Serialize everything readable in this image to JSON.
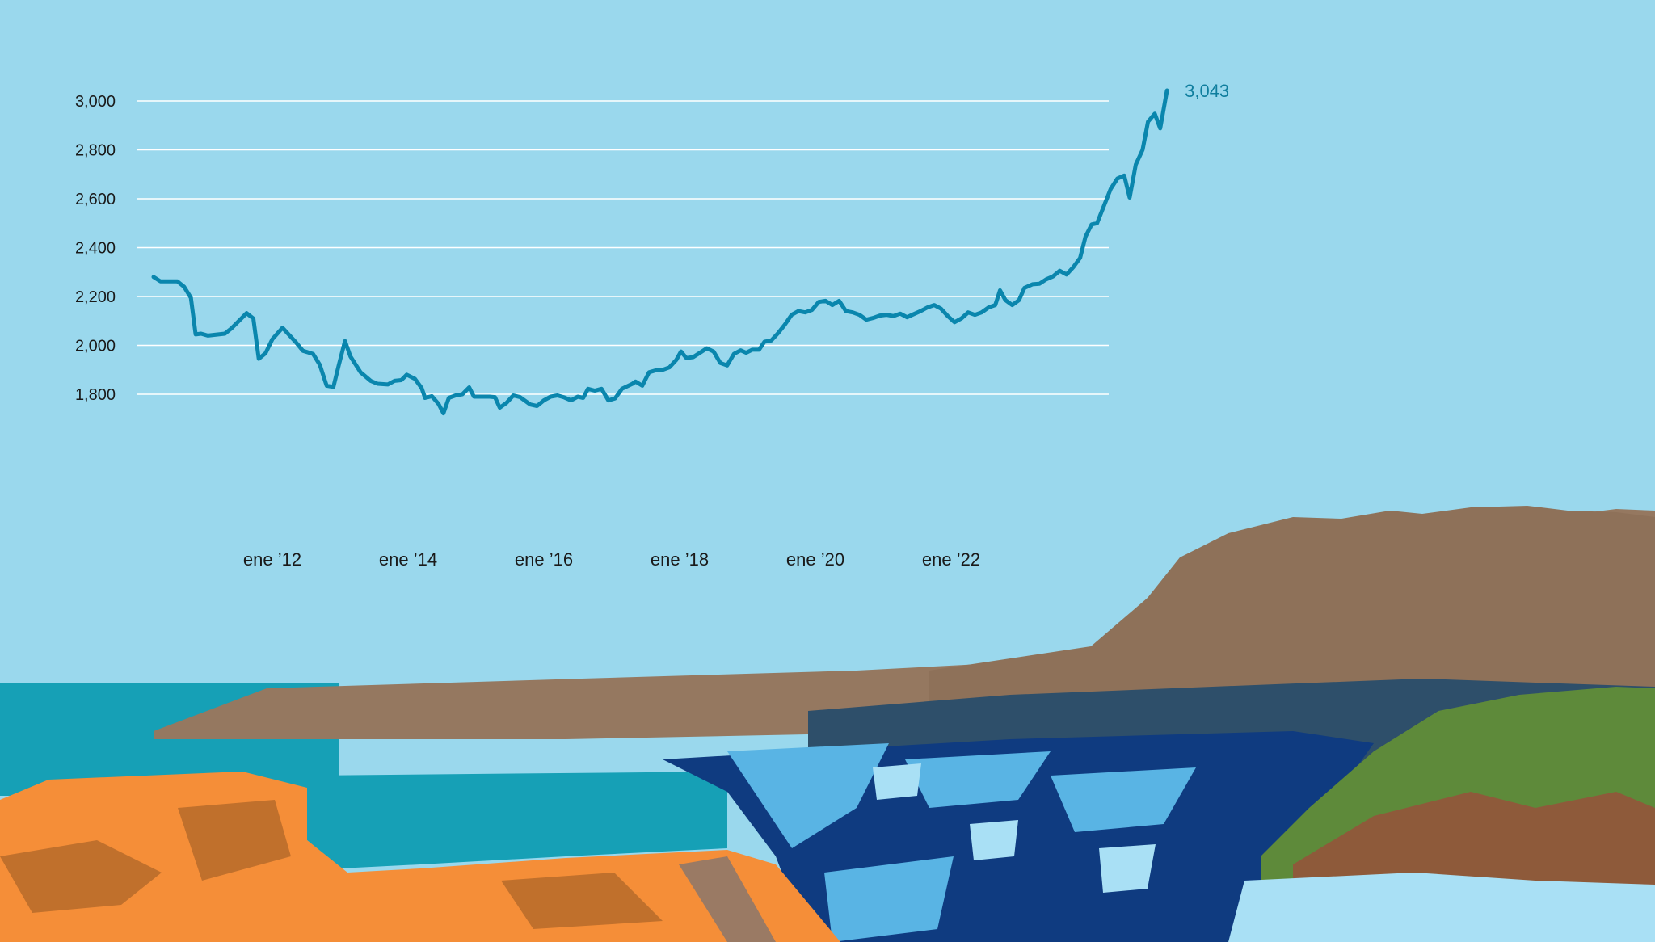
{
  "colors": {
    "sky": "#9ad8ed",
    "line": "#0a86ad",
    "grid": "#ffffff",
    "end_label": "#0f7e9e",
    "mountain": "#957860",
    "sea": "#16a0b6",
    "city_orange": "#f58e38",
    "city_navy": "#0f3b80",
    "city_light": "#a9e0f5",
    "green": "#5e8a3a"
  },
  "chart_data": {
    "type": "line",
    "title": "",
    "xlabel": "",
    "ylabel": "",
    "ylim": [
      1740,
      3100
    ],
    "xlim": [
      2010.1,
      2024.4
    ],
    "grid": true,
    "yticks": [
      {
        "value": 1800,
        "label": "1,800"
      },
      {
        "value": 2000,
        "label": "2,000"
      },
      {
        "value": 2200,
        "label": "2,200"
      },
      {
        "value": 2400,
        "label": "2,400"
      },
      {
        "value": 2600,
        "label": "2,600"
      },
      {
        "value": 2800,
        "label": "2,800"
      },
      {
        "value": 3000,
        "label": "3,000"
      }
    ],
    "xticks": [
      {
        "value": 2012,
        "label": "ene ’12"
      },
      {
        "value": 2014,
        "label": "ene ’14"
      },
      {
        "value": 2016,
        "label": "ene ’16"
      },
      {
        "value": 2018,
        "label": "ene ’18"
      },
      {
        "value": 2020,
        "label": "ene ’20"
      },
      {
        "value": 2022,
        "label": "ene ’22"
      }
    ],
    "end_label": "3,043",
    "series": [
      {
        "points": [
          [
            2010.25,
            2280
          ],
          [
            2010.35,
            2262
          ],
          [
            2010.6,
            2262
          ],
          [
            2010.7,
            2240
          ],
          [
            2010.8,
            2195
          ],
          [
            2010.87,
            2045
          ],
          [
            2010.95,
            2048
          ],
          [
            2011.05,
            2040
          ],
          [
            2011.3,
            2048
          ],
          [
            2011.4,
            2070
          ],
          [
            2011.55,
            2112
          ],
          [
            2011.62,
            2132
          ],
          [
            2011.72,
            2110
          ],
          [
            2011.8,
            1945
          ],
          [
            2011.9,
            1968
          ],
          [
            2012.0,
            2025
          ],
          [
            2012.15,
            2072
          ],
          [
            2012.35,
            2012
          ],
          [
            2012.45,
            1978
          ],
          [
            2012.6,
            1965
          ],
          [
            2012.7,
            1920
          ],
          [
            2012.8,
            1835
          ],
          [
            2012.9,
            1830
          ],
          [
            2012.98,
            1920
          ],
          [
            2013.07,
            2018
          ],
          [
            2013.15,
            1955
          ],
          [
            2013.3,
            1890
          ],
          [
            2013.45,
            1855
          ],
          [
            2013.55,
            1843
          ],
          [
            2013.7,
            1840
          ],
          [
            2013.8,
            1855
          ],
          [
            2013.9,
            1858
          ],
          [
            2013.98,
            1880
          ],
          [
            2014.1,
            1863
          ],
          [
            2014.2,
            1825
          ],
          [
            2014.25,
            1785
          ],
          [
            2014.35,
            1792
          ],
          [
            2014.45,
            1760
          ],
          [
            2014.52,
            1722
          ],
          [
            2014.6,
            1785
          ],
          [
            2014.7,
            1795
          ],
          [
            2014.8,
            1800
          ],
          [
            2014.9,
            1828
          ],
          [
            2014.97,
            1790
          ],
          [
            2015.1,
            1790
          ],
          [
            2015.2,
            1790
          ],
          [
            2015.28,
            1788
          ],
          [
            2015.35,
            1745
          ],
          [
            2015.45,
            1765
          ],
          [
            2015.55,
            1795
          ],
          [
            2015.65,
            1788
          ],
          [
            2015.8,
            1758
          ],
          [
            2015.9,
            1752
          ],
          [
            2016.0,
            1775
          ],
          [
            2016.1,
            1790
          ],
          [
            2016.2,
            1795
          ],
          [
            2016.3,
            1787
          ],
          [
            2016.4,
            1775
          ],
          [
            2016.5,
            1790
          ],
          [
            2016.58,
            1785
          ],
          [
            2016.65,
            1822
          ],
          [
            2016.75,
            1815
          ],
          [
            2016.85,
            1822
          ],
          [
            2016.95,
            1775
          ],
          [
            2017.05,
            1783
          ],
          [
            2017.15,
            1822
          ],
          [
            2017.3,
            1842
          ],
          [
            2017.35,
            1852
          ],
          [
            2017.45,
            1835
          ],
          [
            2017.55,
            1890
          ],
          [
            2017.65,
            1898
          ],
          [
            2017.75,
            1900
          ],
          [
            2017.85,
            1910
          ],
          [
            2017.95,
            1940
          ],
          [
            2018.02,
            1975
          ],
          [
            2018.1,
            1948
          ],
          [
            2018.2,
            1952
          ],
          [
            2018.3,
            1970
          ],
          [
            2018.4,
            1988
          ],
          [
            2018.5,
            1975
          ],
          [
            2018.6,
            1928
          ],
          [
            2018.7,
            1918
          ],
          [
            2018.8,
            1965
          ],
          [
            2018.9,
            1980
          ],
          [
            2018.98,
            1970
          ],
          [
            2019.07,
            1982
          ],
          [
            2019.17,
            1982
          ],
          [
            2019.25,
            2015
          ],
          [
            2019.35,
            2020
          ],
          [
            2019.45,
            2050
          ],
          [
            2019.55,
            2085
          ],
          [
            2019.65,
            2125
          ],
          [
            2019.75,
            2140
          ],
          [
            2019.85,
            2135
          ],
          [
            2019.95,
            2145
          ],
          [
            2020.05,
            2178
          ],
          [
            2020.15,
            2182
          ],
          [
            2020.25,
            2165
          ],
          [
            2020.35,
            2182
          ],
          [
            2020.45,
            2140
          ],
          [
            2020.55,
            2135
          ],
          [
            2020.65,
            2125
          ],
          [
            2020.75,
            2105
          ],
          [
            2020.85,
            2112
          ],
          [
            2020.95,
            2122
          ],
          [
            2021.05,
            2125
          ],
          [
            2021.15,
            2120
          ],
          [
            2021.25,
            2130
          ],
          [
            2021.35,
            2115
          ],
          [
            2021.45,
            2128
          ],
          [
            2021.55,
            2140
          ],
          [
            2021.65,
            2155
          ],
          [
            2021.75,
            2165
          ],
          [
            2021.85,
            2150
          ],
          [
            2021.95,
            2120
          ],
          [
            2022.05,
            2095
          ],
          [
            2022.15,
            2110
          ],
          [
            2022.25,
            2135
          ],
          [
            2022.35,
            2125
          ],
          [
            2022.45,
            2135
          ],
          [
            2022.55,
            2155
          ],
          [
            2022.65,
            2165
          ],
          [
            2022.72,
            2225
          ],
          [
            2022.8,
            2185
          ],
          [
            2022.9,
            2165
          ],
          [
            2023.0,
            2185
          ],
          [
            2023.08,
            2235
          ],
          [
            2023.2,
            2250
          ],
          [
            2023.3,
            2252
          ],
          [
            2023.4,
            2270
          ],
          [
            2023.5,
            2282
          ],
          [
            2023.6,
            2305
          ],
          [
            2023.7,
            2290
          ],
          [
            2023.8,
            2320
          ],
          [
            2023.9,
            2358
          ],
          [
            2023.98,
            2445
          ],
          [
            2024.07,
            2495
          ],
          [
            2024.15,
            2500
          ],
          [
            2024.25,
            2570
          ],
          [
            2024.35,
            2640
          ],
          [
            2024.45,
            2683
          ],
          [
            2024.55,
            2695
          ],
          [
            2024.63,
            2605
          ],
          [
            2024.72,
            2740
          ],
          [
            2024.82,
            2800
          ],
          [
            2024.9,
            2915
          ],
          [
            2025.0,
            2948
          ],
          [
            2025.08,
            2888
          ],
          [
            2025.18,
            3043
          ]
        ]
      }
    ]
  }
}
